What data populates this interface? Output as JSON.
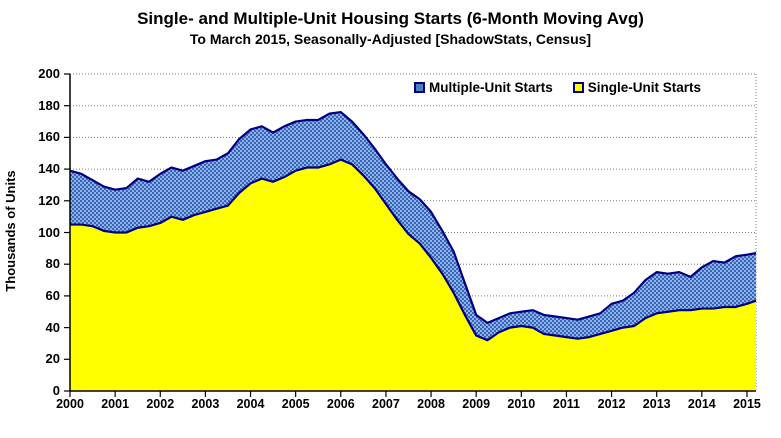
{
  "title": "Single- and Multiple-Unit Housing Starts (6-Month Moving Avg)",
  "subtitle": "To March 2015, Seasonally-Adjusted [ShadowStats, Census]",
  "colors": {
    "single_fill": "#ffff00",
    "multiple_fill_dark": "#3565bd",
    "multiple_fill_light": "#8fb2e3",
    "line_stroke": "#000080",
    "grid": "#7a7a7a",
    "axis": "#000000"
  },
  "chart_data": {
    "type": "area",
    "stacked": true,
    "title": "Single- and Multiple-Unit Housing Starts (6-Month Moving Avg)",
    "subtitle": "To March 2015, Seasonally-Adjusted [ShadowStats, Census]",
    "xlabel": "",
    "ylabel": "Thousands of Units",
    "ylim": [
      0,
      200
    ],
    "xlim": [
      2000,
      2015.2
    ],
    "grid": true,
    "legend_position": "top-inside",
    "yticks": [
      0,
      20,
      40,
      60,
      80,
      100,
      120,
      140,
      160,
      180,
      200
    ],
    "xticks": [
      2000,
      2001,
      2002,
      2003,
      2004,
      2005,
      2006,
      2007,
      2008,
      2009,
      2010,
      2011,
      2012,
      2013,
      2014,
      2015
    ],
    "x": [
      2000.0,
      2000.25,
      2000.5,
      2000.75,
      2001.0,
      2001.25,
      2001.5,
      2001.75,
      2002.0,
      2002.25,
      2002.5,
      2002.75,
      2003.0,
      2003.25,
      2003.5,
      2003.75,
      2004.0,
      2004.25,
      2004.5,
      2004.75,
      2005.0,
      2005.25,
      2005.5,
      2005.75,
      2006.0,
      2006.25,
      2006.5,
      2006.75,
      2007.0,
      2007.25,
      2007.5,
      2007.75,
      2008.0,
      2008.25,
      2008.5,
      2008.75,
      2009.0,
      2009.25,
      2009.5,
      2009.75,
      2010.0,
      2010.25,
      2010.5,
      2010.75,
      2011.0,
      2011.25,
      2011.5,
      2011.75,
      2012.0,
      2012.25,
      2012.5,
      2012.75,
      2013.0,
      2013.25,
      2013.5,
      2013.75,
      2014.0,
      2014.25,
      2014.5,
      2014.75,
      2015.0,
      2015.2
    ],
    "series": [
      {
        "name": "Multiple-Unit Starts",
        "color": "#4a7ec5",
        "values": [
          34,
          32,
          29,
          28,
          27,
          28,
          31,
          28,
          31,
          31,
          31,
          31,
          32,
          31,
          33,
          34,
          34,
          33,
          31,
          32,
          31,
          30,
          30,
          32,
          30,
          27,
          26,
          25,
          25,
          26,
          27,
          28,
          29,
          27,
          26,
          20,
          13,
          11,
          9,
          9,
          9,
          11,
          12,
          12,
          12,
          12,
          13,
          13,
          17,
          17,
          21,
          24,
          26,
          24,
          24,
          21,
          26,
          30,
          28,
          32,
          31,
          30
        ]
      },
      {
        "name": "Single-Unit Starts",
        "color": "#ffff00",
        "values": [
          105,
          105,
          104,
          101,
          100,
          100,
          103,
          104,
          106,
          110,
          108,
          111,
          113,
          115,
          117,
          125,
          131,
          134,
          132,
          135,
          139,
          141,
          141,
          143,
          146,
          143,
          136,
          128,
          118,
          108,
          99,
          93,
          84,
          74,
          62,
          48,
          35,
          32,
          37,
          40,
          41,
          40,
          36,
          35,
          34,
          33,
          34,
          36,
          38,
          40,
          41,
          46,
          49,
          50,
          51,
          51,
          52,
          52,
          53,
          53,
          55,
          57
        ]
      }
    ]
  }
}
